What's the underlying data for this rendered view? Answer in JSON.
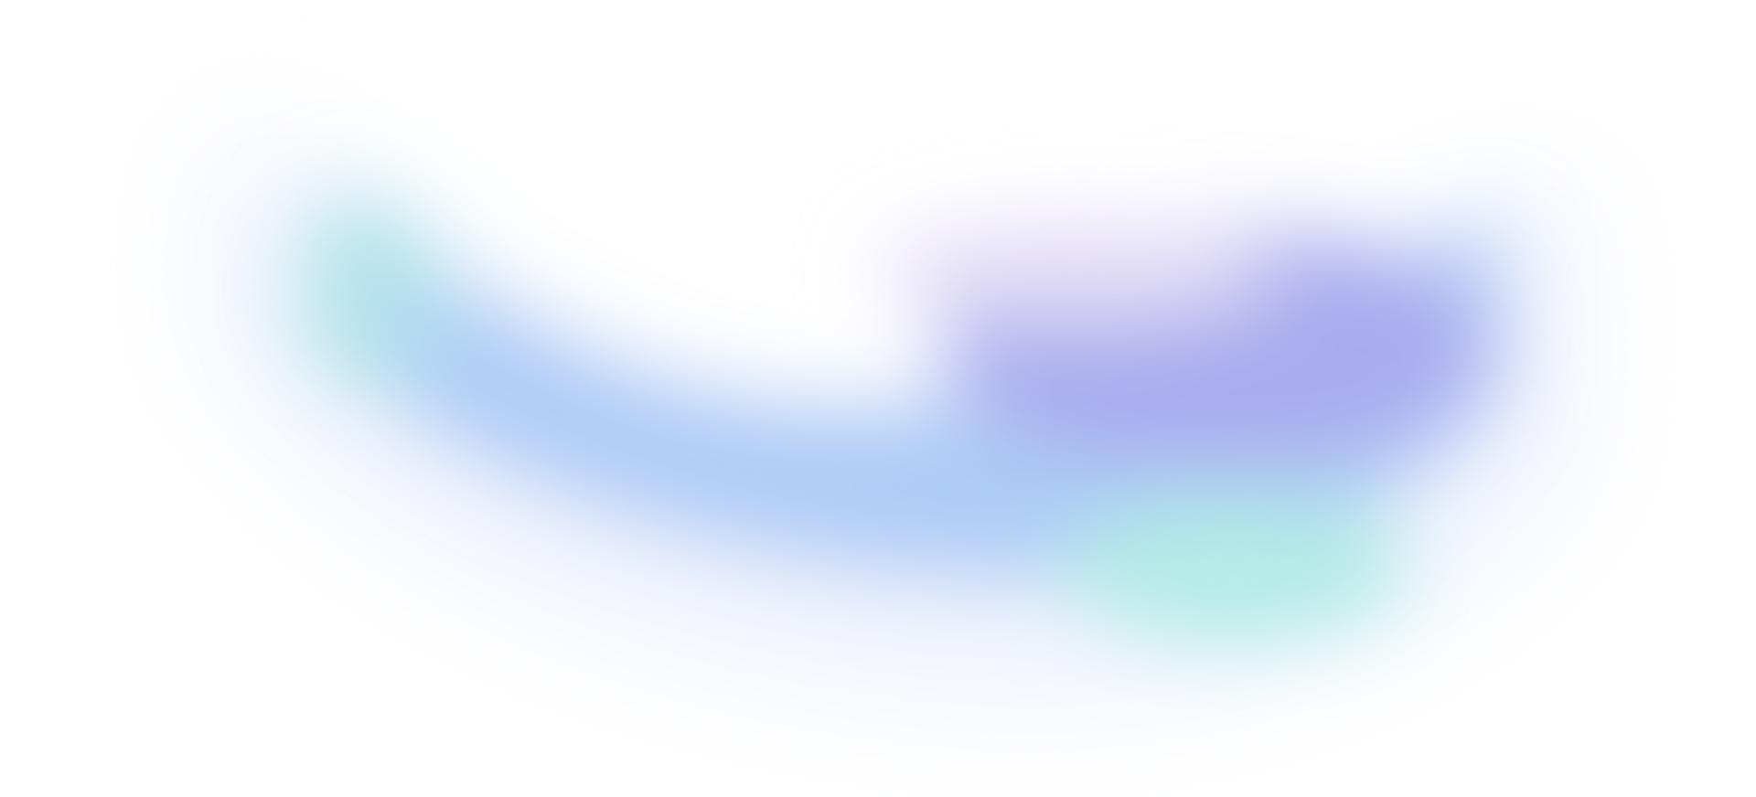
{
  "background": {
    "base_color": "#ffffff",
    "colors": {
      "blue": "#aecbf6",
      "purple": "#a8acee",
      "teal": "#b2ebe6",
      "lavender": "#e2dcf6",
      "pale_blue": "#eef2fc"
    }
  }
}
